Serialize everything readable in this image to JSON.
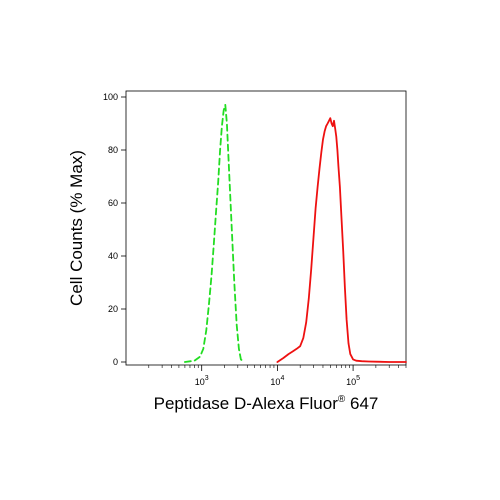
{
  "chart_data": {
    "type": "line",
    "xlabel_main": "Peptidase D-Alexa Fluor",
    "xlabel_sup": "®",
    "xlabel_tail": " 647",
    "ylabel": "Cell Counts (% Max)",
    "x_scale": "log",
    "xlim": [
      100,
      500000
    ],
    "ylim": [
      0,
      100
    ],
    "x_ticks": [
      {
        "value": 1000,
        "base": "10",
        "exp": "3"
      },
      {
        "value": 10000,
        "base": "10",
        "exp": "4"
      },
      {
        "value": 100000,
        "base": "10",
        "exp": "5"
      }
    ],
    "y_ticks": [
      0,
      20,
      40,
      60,
      80,
      100
    ],
    "grid": false,
    "series": [
      {
        "style": "dashed",
        "color": "#22dd22",
        "x": [
          600,
          800,
          950,
          1050,
          1150,
          1250,
          1350,
          1450,
          1550,
          1650,
          1750,
          1850,
          1950,
          2050,
          2150,
          2300,
          2500,
          2700,
          2900,
          3100,
          3300,
          3600
        ],
        "y": [
          0,
          0.5,
          2,
          5,
          12,
          22,
          33,
          45,
          57,
          68,
          80,
          89,
          95,
          97,
          90,
          72,
          50,
          30,
          14,
          5,
          1,
          0
        ]
      },
      {
        "style": "solid",
        "color": "#ee1111",
        "x": [
          10000,
          12000,
          14000,
          16000,
          18000,
          20000,
          22000,
          24000,
          26000,
          28000,
          30000,
          32000,
          34000,
          36000,
          38000,
          40000,
          42000,
          44000,
          46000,
          48000,
          50000,
          52000,
          54000,
          56000,
          58000,
          60000,
          62000,
          64000,
          67000,
          70000,
          74000,
          78000,
          82000,
          87000,
          92000,
          100000,
          110000,
          130000,
          160000,
          200000,
          300000,
          500000
        ],
        "y": [
          0,
          1.5,
          3,
          4,
          5,
          6,
          9,
          15,
          24,
          35,
          47,
          58,
          66,
          73,
          79,
          84,
          87,
          89,
          90,
          91,
          92,
          90,
          89,
          91,
          88,
          85,
          80,
          74,
          66,
          55,
          42,
          28,
          16,
          7,
          3,
          1,
          0.5,
          0.3,
          0.2,
          0.1,
          0,
          0
        ]
      }
    ]
  }
}
